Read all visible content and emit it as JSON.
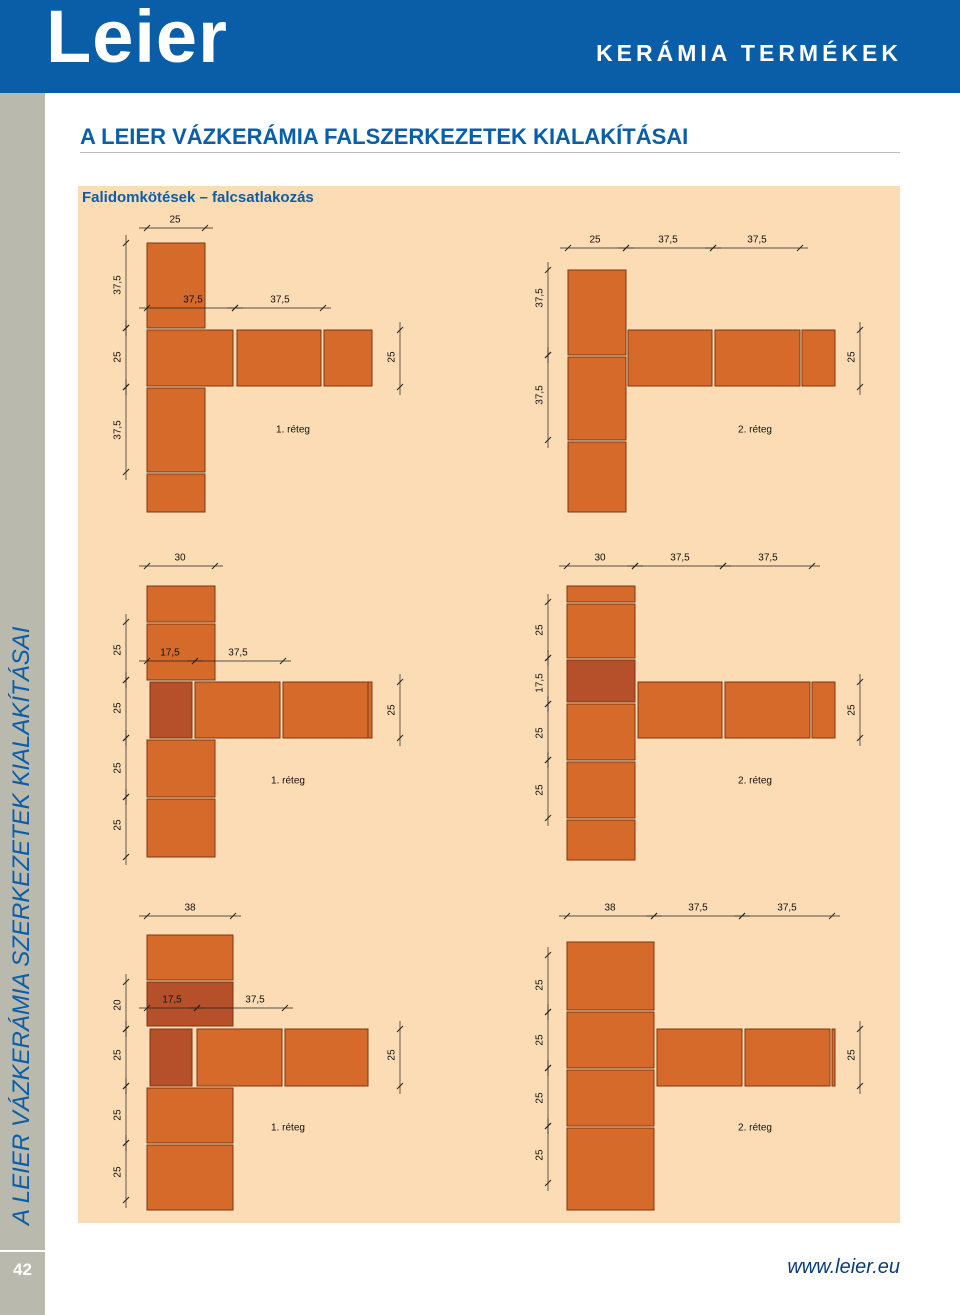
{
  "header": {
    "logo": "Leier",
    "section": "KERÁMIA TERMÉKEK"
  },
  "title": "A LEIER VÁZKERÁMIA FALSZERKEZETEK KIALAKÍTÁSAI",
  "subtitle": "Falidomkötések – falcsatlakozás",
  "sidebar": "A LEIER VÁZKERÁMIA SZERKEZETEK KIALAKÍTÁSAI",
  "page_number": "42",
  "footer": "www.leier.eu",
  "diagrams": [
    {
      "layer": "1. réteg",
      "top": [
        "25"
      ],
      "left": [
        "37,5",
        "25",
        "37,5"
      ],
      "inner": [
        "37,5",
        "37,5"
      ],
      "right": [
        "25"
      ]
    },
    {
      "layer": "2. réteg",
      "top": [
        "25",
        "37,5",
        "37,5"
      ],
      "left": [
        "37,5",
        "37,5"
      ],
      "inner": [],
      "right": [
        "25"
      ]
    },
    {
      "layer": "1. réteg",
      "top": [
        "30"
      ],
      "left": [
        "25",
        "25",
        "25",
        "25"
      ],
      "inner": [
        "17,5",
        "37,5"
      ],
      "right": [
        "25"
      ]
    },
    {
      "layer": "2. réteg",
      "top": [
        "30",
        "37,5",
        "37,5"
      ],
      "left": [
        "25",
        "17,5",
        "25",
        "25"
      ],
      "inner": [],
      "right": [
        "25"
      ]
    },
    {
      "layer": "1. réteg",
      "top": [
        "38"
      ],
      "left": [
        "20",
        "25",
        "25",
        "25"
      ],
      "inner": [
        "17,5",
        "37,5"
      ],
      "right": [
        "25"
      ]
    },
    {
      "layer": "2. réteg",
      "top": [
        "38",
        "37,5",
        "37,5"
      ],
      "left": [
        "25",
        "25",
        "25",
        "25"
      ],
      "inner": [],
      "right": [
        "25"
      ]
    }
  ]
}
